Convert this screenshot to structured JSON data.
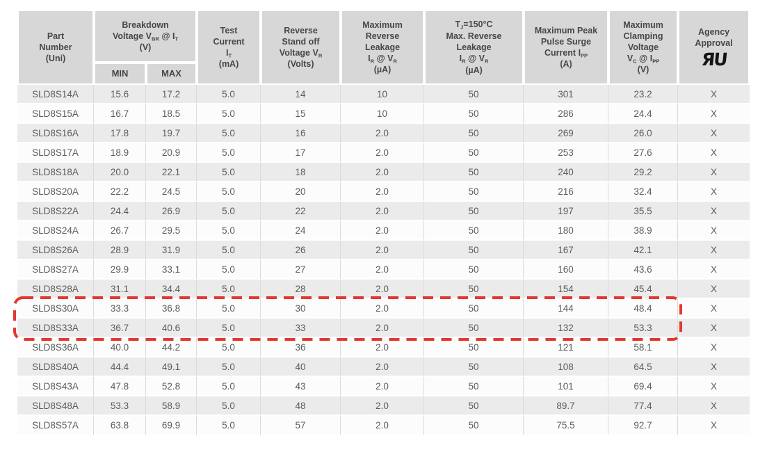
{
  "table": {
    "columns": [
      {
        "id": "part_number",
        "label": "Part\nNumber\n(Uni)"
      },
      {
        "id": "breakdown_voltage",
        "label": "Breakdown\nVoltage V~BR~ @ I~T~\n(V)",
        "sub": [
          "MIN",
          "MAX"
        ]
      },
      {
        "id": "test_current",
        "label": "Test\nCurrent\nI~T~\n(mA)"
      },
      {
        "id": "reverse_standoff",
        "label": "Reverse\nStand off\nVoltage V~R~\n(Volts)"
      },
      {
        "id": "max_reverse_leakage",
        "label": "Maximum\nReverse\nLeakage\nI~R~ @ V~R~\n(µA)"
      },
      {
        "id": "tj_max_reverse_leakage",
        "label": "T~J~=150°C\nMax. Reverse\nLeakage\nI~R~ @ V~R~\n(µA)"
      },
      {
        "id": "peak_pulse_surge",
        "label": "Maximum Peak\nPulse Surge\nCurrent I~PP~\n(A)"
      },
      {
        "id": "max_clamping",
        "label": "Maximum\nClamping\nVoltage\nV~C~ @ I~PP~\n(V)"
      },
      {
        "id": "agency_approval",
        "label": "Agency\nApproval",
        "mark": "ЯU"
      }
    ],
    "rows": [
      [
        "SLD8S14A",
        "15.6",
        "17.2",
        "5.0",
        "14",
        "10",
        "50",
        "301",
        "23.2",
        "X"
      ],
      [
        "SLD8S15A",
        "16.7",
        "18.5",
        "5.0",
        "15",
        "10",
        "50",
        "286",
        "24.4",
        "X"
      ],
      [
        "SLD8S16A",
        "17.8",
        "19.7",
        "5.0",
        "16",
        "2.0",
        "50",
        "269",
        "26.0",
        "X"
      ],
      [
        "SLD8S17A",
        "18.9",
        "20.9",
        "5.0",
        "17",
        "2.0",
        "50",
        "253",
        "27.6",
        "X"
      ],
      [
        "SLD8S18A",
        "20.0",
        "22.1",
        "5.0",
        "18",
        "2.0",
        "50",
        "240",
        "29.2",
        "X"
      ],
      [
        "SLD8S20A",
        "22.2",
        "24.5",
        "5.0",
        "20",
        "2.0",
        "50",
        "216",
        "32.4",
        "X"
      ],
      [
        "SLD8S22A",
        "24.4",
        "26.9",
        "5.0",
        "22",
        "2.0",
        "50",
        "197",
        "35.5",
        "X"
      ],
      [
        "SLD8S24A",
        "26.7",
        "29.5",
        "5.0",
        "24",
        "2.0",
        "50",
        "180",
        "38.9",
        "X"
      ],
      [
        "SLD8S26A",
        "28.9",
        "31.9",
        "5.0",
        "26",
        "2.0",
        "50",
        "167",
        "42.1",
        "X"
      ],
      [
        "SLD8S27A",
        "29.9",
        "33.1",
        "5.0",
        "27",
        "2.0",
        "50",
        "160",
        "43.6",
        "X"
      ],
      [
        "SLD8S28A",
        "31.1",
        "34.4",
        "5.0",
        "28",
        "2.0",
        "50",
        "154",
        "45.4",
        "X"
      ],
      [
        "SLD8S30A",
        "33.3",
        "36.8",
        "5.0",
        "30",
        "2.0",
        "50",
        "144",
        "48.4",
        "X"
      ],
      [
        "SLD8S33A",
        "36.7",
        "40.6",
        "5.0",
        "33",
        "2.0",
        "50",
        "132",
        "53.3",
        "X"
      ],
      [
        "SLD8S36A",
        "40.0",
        "44.2",
        "5.0",
        "36",
        "2.0",
        "50",
        "121",
        "58.1",
        "X"
      ],
      [
        "SLD8S40A",
        "44.4",
        "49.1",
        "5.0",
        "40",
        "2.0",
        "50",
        "108",
        "64.5",
        "X"
      ],
      [
        "SLD8S43A",
        "47.8",
        "52.8",
        "5.0",
        "43",
        "2.0",
        "50",
        "101",
        "69.4",
        "X"
      ],
      [
        "SLD8S48A",
        "53.3",
        "58.9",
        "5.0",
        "48",
        "2.0",
        "50",
        "89.7",
        "77.4",
        "X"
      ],
      [
        "SLD8S57A",
        "63.8",
        "69.9",
        "5.0",
        "57",
        "2.0",
        "50",
        "75.5",
        "92.7",
        "X"
      ]
    ],
    "highlighted_rows": [
      "SLD8S30A",
      "SLD8S33A"
    ],
    "highlight_color": "#e2382f"
  }
}
